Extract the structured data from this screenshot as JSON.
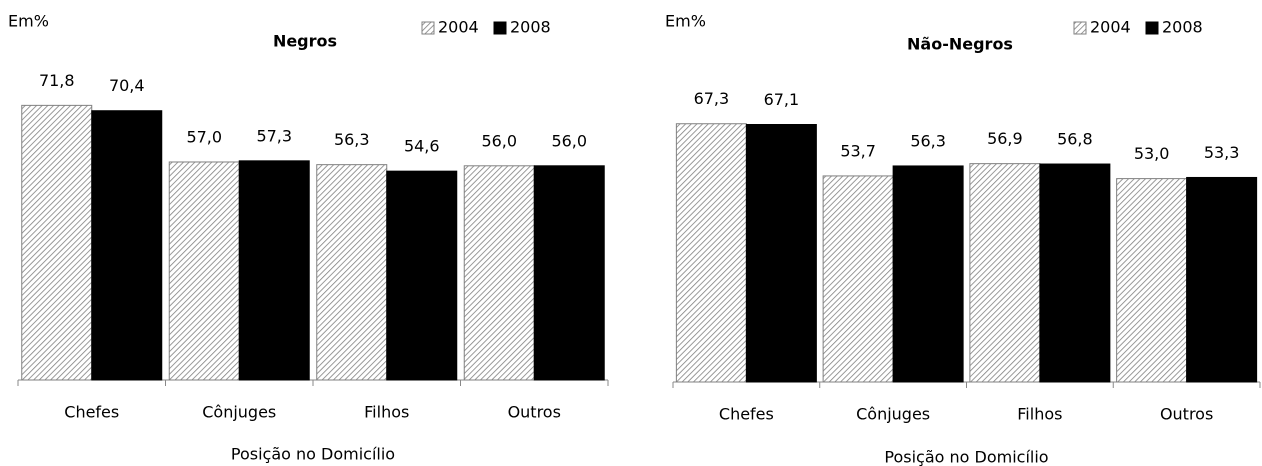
{
  "chart_data": [
    {
      "type": "bar",
      "title": "Negros",
      "unit_label": "Em%",
      "x_label": "Posição no Domicílio",
      "categories": [
        "Chefes",
        "Cônjuges",
        "Filhos",
        "Outros"
      ],
      "series": [
        {
          "name": "2004",
          "color": "#808080",
          "pattern": "diagonal",
          "values": [
            71.8,
            57.0,
            56.3,
            56.0
          ],
          "value_labels": [
            "71,8",
            "57,0",
            "56,3",
            "56,0"
          ]
        },
        {
          "name": "2008",
          "color": "#000000",
          "values": [
            70.4,
            57.3,
            54.6,
            56.0
          ],
          "value_labels": [
            "70,4",
            "57,3",
            "54,6",
            "56,0"
          ]
        }
      ],
      "ylim": [
        0,
        80
      ]
    },
    {
      "type": "bar",
      "title": "Não-Negros",
      "unit_label": "Em%",
      "x_label": "Posição no Domicílio",
      "categories": [
        "Chefes",
        "Cônjuges",
        "Filhos",
        "Outros"
      ],
      "series": [
        {
          "name": "2004",
          "color": "#808080",
          "pattern": "diagonal",
          "values": [
            67.3,
            53.7,
            56.9,
            53.0
          ],
          "value_labels": [
            "67,3",
            "53,7",
            "56,9",
            "53,0"
          ]
        },
        {
          "name": "2008",
          "color": "#000000",
          "values": [
            67.1,
            56.3,
            56.8,
            53.3
          ],
          "value_labels": [
            "67,1",
            "56,3",
            "56,8",
            "53,3"
          ]
        }
      ],
      "ylim": [
        0,
        80
      ]
    }
  ]
}
